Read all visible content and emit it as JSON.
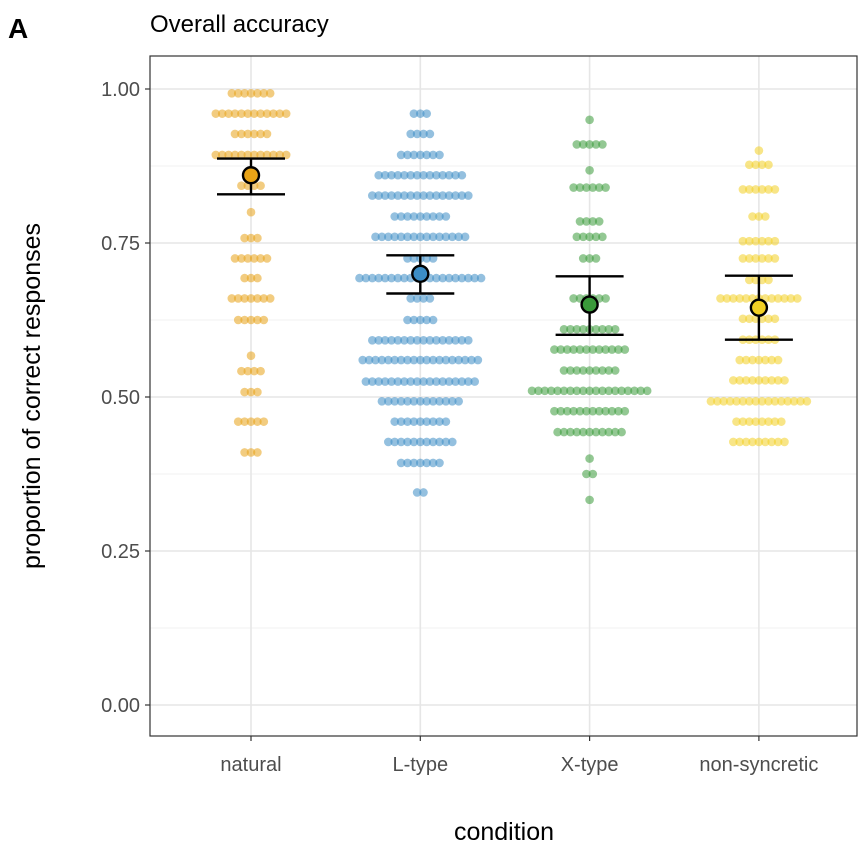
{
  "panel_label": "A",
  "chart_data": {
    "type": "scatter",
    "subtype": "beeswarm-with-mean-and-error-bars",
    "title": "Overall accuracy",
    "xlabel": "condition",
    "ylabel": "proportion of correct responses",
    "categories": [
      "natural",
      "L-type",
      "X-type",
      "non-syncretic"
    ],
    "ylim": [
      -0.05,
      1.05
    ],
    "yticks": [
      0.0,
      0.25,
      0.5,
      0.75,
      1.0
    ],
    "ytick_labels": [
      "0.00",
      "0.25",
      "0.50",
      "0.75",
      "1.00"
    ],
    "grid": true,
    "legend": "none",
    "series": [
      {
        "category": "natural",
        "color": "#E8A317",
        "mean": 0.86,
        "ci": [
          0.829,
          0.887
        ],
        "points": [
          {
            "y": 0.993,
            "n": 7
          },
          {
            "y": 0.96,
            "n": 12
          },
          {
            "y": 0.927,
            "n": 6
          },
          {
            "y": 0.893,
            "n": 12
          },
          {
            "y": 0.843,
            "n": 4
          },
          {
            "y": 0.8,
            "n": 1
          },
          {
            "y": 0.758,
            "n": 3
          },
          {
            "y": 0.725,
            "n": 6
          },
          {
            "y": 0.693,
            "n": 3
          },
          {
            "y": 0.66,
            "n": 7
          },
          {
            "y": 0.625,
            "n": 5
          },
          {
            "y": 0.567,
            "n": 1
          },
          {
            "y": 0.542,
            "n": 4
          },
          {
            "y": 0.508,
            "n": 3
          },
          {
            "y": 0.46,
            "n": 5
          },
          {
            "y": 0.41,
            "n": 3
          }
        ]
      },
      {
        "category": "L-type",
        "color": "#3C8DC5",
        "mean": 0.7,
        "ci": [
          0.668,
          0.73
        ],
        "points": [
          {
            "y": 0.96,
            "n": 3
          },
          {
            "y": 0.927,
            "n": 4
          },
          {
            "y": 0.893,
            "n": 7
          },
          {
            "y": 0.86,
            "n": 14
          },
          {
            "y": 0.827,
            "n": 16
          },
          {
            "y": 0.793,
            "n": 9
          },
          {
            "y": 0.76,
            "n": 15
          },
          {
            "y": 0.725,
            "n": 5
          },
          {
            "y": 0.693,
            "n": 20
          },
          {
            "y": 0.66,
            "n": 4
          },
          {
            "y": 0.625,
            "n": 5
          },
          {
            "y": 0.592,
            "n": 16
          },
          {
            "y": 0.56,
            "n": 19
          },
          {
            "y": 0.525,
            "n": 18
          },
          {
            "y": 0.493,
            "n": 13
          },
          {
            "y": 0.46,
            "n": 9
          },
          {
            "y": 0.427,
            "n": 11
          },
          {
            "y": 0.393,
            "n": 7
          },
          {
            "y": 0.345,
            "n": 2
          }
        ]
      },
      {
        "category": "X-type",
        "color": "#3A9A3A",
        "mean": 0.65,
        "ci": [
          0.601,
          0.696
        ],
        "points": [
          {
            "y": 0.95,
            "n": 1
          },
          {
            "y": 0.91,
            "n": 5
          },
          {
            "y": 0.868,
            "n": 1
          },
          {
            "y": 0.84,
            "n": 6
          },
          {
            "y": 0.785,
            "n": 4
          },
          {
            "y": 0.76,
            "n": 5
          },
          {
            "y": 0.725,
            "n": 3
          },
          {
            "y": 0.66,
            "n": 6
          },
          {
            "y": 0.61,
            "n": 9
          },
          {
            "y": 0.577,
            "n": 12
          },
          {
            "y": 0.543,
            "n": 9
          },
          {
            "y": 0.51,
            "n": 19
          },
          {
            "y": 0.477,
            "n": 12
          },
          {
            "y": 0.443,
            "n": 11
          },
          {
            "y": 0.4,
            "n": 1
          },
          {
            "y": 0.375,
            "n": 2
          },
          {
            "y": 0.333,
            "n": 1
          }
        ]
      },
      {
        "category": "non-syncretic",
        "color": "#F2D024",
        "mean": 0.645,
        "ci": [
          0.593,
          0.697
        ],
        "points": [
          {
            "y": 0.9,
            "n": 1
          },
          {
            "y": 0.877,
            "n": 4
          },
          {
            "y": 0.837,
            "n": 6
          },
          {
            "y": 0.793,
            "n": 3
          },
          {
            "y": 0.753,
            "n": 6
          },
          {
            "y": 0.725,
            "n": 6
          },
          {
            "y": 0.69,
            "n": 4
          },
          {
            "y": 0.66,
            "n": 13
          },
          {
            "y": 0.627,
            "n": 6
          },
          {
            "y": 0.593,
            "n": 6
          },
          {
            "y": 0.56,
            "n": 7
          },
          {
            "y": 0.527,
            "n": 9
          },
          {
            "y": 0.493,
            "n": 16
          },
          {
            "y": 0.46,
            "n": 8
          },
          {
            "y": 0.427,
            "n": 9
          }
        ]
      }
    ]
  }
}
